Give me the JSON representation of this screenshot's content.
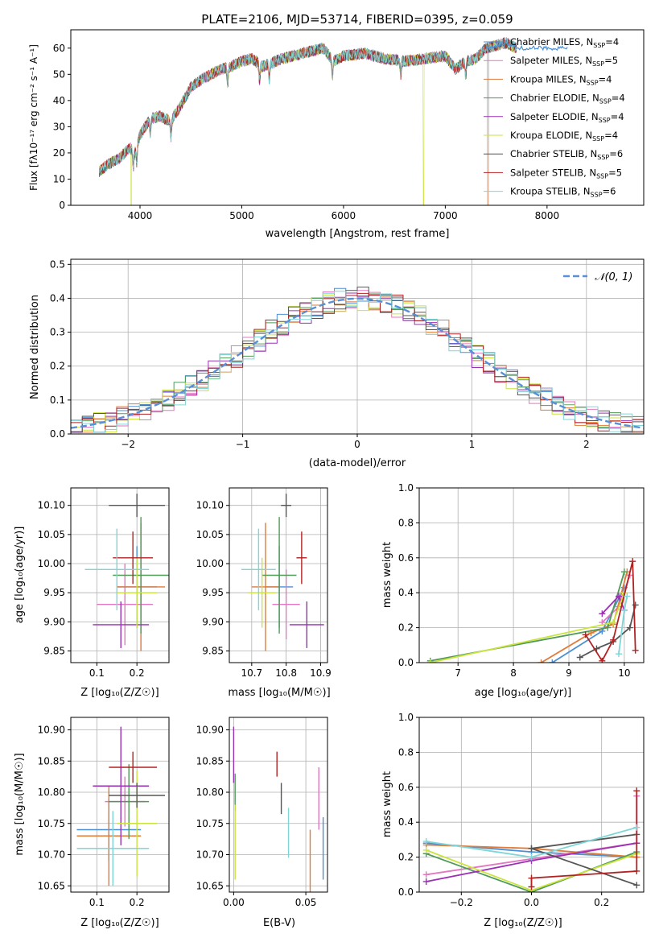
{
  "title": "PLATE=2106, MJD=53714, FIBERID=0395, z=0.059",
  "colors": {
    "cm": "#4a90d9",
    "sm": "#e377c2",
    "km": "#e07b39",
    "ce": "#4e9a56",
    "se": "#9b30b5",
    "ke": "#cbe33d",
    "cs": "#555555",
    "ss": "#b22222",
    "ks": "#7fd6d6",
    "normal": "#5a8fd6"
  },
  "panels": {
    "spectrum": {
      "xlabel": "wavelength [Angstrom, rest frame]",
      "ylabel": "Flux [fλ10⁻¹⁷ erg cm⁻² s⁻¹ A⁻¹]",
      "xticks": [
        "4000",
        "5000",
        "6000",
        "7000",
        "8000"
      ],
      "yticks": [
        "0",
        "10",
        "20",
        "30",
        "40",
        "50",
        "60"
      ],
      "legend": [
        {
          "key": "cm",
          "pre": "Chabrier MILES, N",
          "sub": "SSP",
          "post": "=4"
        },
        {
          "key": "sm",
          "pre": "Salpeter MILES, N",
          "sub": "SSP",
          "post": "=5"
        },
        {
          "key": "km",
          "pre": "Kroupa MILES, N",
          "sub": "SSP",
          "post": "=4"
        },
        {
          "key": "ce",
          "pre": "Chabrier ELODIE, N",
          "sub": "SSP",
          "post": "=4"
        },
        {
          "key": "se",
          "pre": "Salpeter ELODIE, N",
          "sub": "SSP",
          "post": "=4"
        },
        {
          "key": "ke",
          "pre": "Kroupa ELODIE, N",
          "sub": "SSP",
          "post": "=4"
        },
        {
          "key": "cs",
          "pre": "Chabrier STELIB, N",
          "sub": "SSP",
          "post": "=6"
        },
        {
          "key": "ss",
          "pre": "Salpeter STELIB, N",
          "sub": "SSP",
          "post": "=5"
        },
        {
          "key": "ks",
          "pre": "Kroupa STELIB, N",
          "sub": "SSP",
          "post": "=6"
        }
      ]
    },
    "residuals": {
      "xlabel": "(data-model)/error",
      "ylabel": "Normed distribution",
      "legend": "𝒩(0, 1)",
      "xticks": [
        "−2",
        "−1",
        "0",
        "1",
        "2"
      ],
      "yticks": [
        "0.0",
        "0.1",
        "0.2",
        "0.3",
        "0.4",
        "0.5"
      ]
    },
    "age_z": {
      "xlabel": "Z [log₁₀(Z/Z☉)]",
      "ylabel": "age  [log₁₀(age/yr)]",
      "xticks": [
        "0.1",
        "0.2"
      ],
      "yticks": [
        "10.10",
        "10.05",
        "10.00",
        "9.95",
        "9.90",
        "9.85"
      ]
    },
    "age_mass": {
      "xlabel": "mass [log₁₀(M/M☉)]",
      "xticks": [
        "10.7",
        "10.8",
        "10.9"
      ],
      "yticks": [
        "10.10",
        "10.05",
        "10.00",
        "9.95",
        "9.90",
        "9.85"
      ]
    },
    "weight_age": {
      "xlabel": "age  [log₁₀(age/yr)]",
      "ylabel": "mass weight",
      "xticks": [
        "7",
        "8",
        "9",
        "10"
      ],
      "yticks": [
        "0.0",
        "0.2",
        "0.4",
        "0.6",
        "0.8",
        "1.0"
      ]
    },
    "mass_z": {
      "xlabel": "Z [log₁₀(Z/Z☉)]",
      "ylabel": "mass [log₁₀(M/M☉)]",
      "xticks": [
        "0.1",
        "0.2"
      ],
      "yticks": [
        "10.90",
        "10.85",
        "10.80",
        "10.75",
        "10.70",
        "10.65"
      ]
    },
    "mass_ebv": {
      "xlabel": "E(B-V)",
      "xticks": [
        "0.00",
        "0.05"
      ],
      "yticks": [
        "10.90",
        "10.85",
        "10.80",
        "10.75",
        "10.70",
        "10.65"
      ]
    },
    "weight_z": {
      "xlabel": "Z [log₁₀(Z/Z☉)]",
      "ylabel": "mass weight",
      "xticks": [
        "−0.2",
        "0.0",
        "0.2"
      ],
      "yticks": [
        "0.0",
        "0.2",
        "0.4",
        "0.6",
        "0.8",
        "1.0"
      ]
    }
  },
  "chart_data": [
    {
      "type": "line",
      "id": "spectrum",
      "title": "PLATE=2106, MJD=53714, FIBERID=0395, z=0.059",
      "xlabel": "wavelength [Angstrom, rest frame]",
      "ylabel": "Flux [fλ10⁻¹⁷ erg cm⁻² s⁻¹ A⁻¹]",
      "xlim": [
        3320,
        8950
      ],
      "ylim": [
        0,
        67
      ],
      "continuum": {
        "x": [
          3600,
          3700,
          3800,
          3900,
          3950,
          4000,
          4100,
          4200,
          4300,
          4400,
          4500,
          4600,
          4700,
          4800,
          4900,
          5000,
          5100,
          5200,
          5400,
          5600,
          5800,
          5900,
          6000,
          6200,
          6400,
          6600,
          6800,
          7000,
          7100,
          7200,
          7300,
          7400,
          7500,
          7600,
          7700
        ],
        "y": [
          13,
          16,
          18,
          22,
          20,
          27,
          33,
          34,
          32,
          38,
          45,
          48,
          50,
          52,
          53,
          55,
          56,
          53,
          56,
          58,
          60,
          55,
          57,
          58,
          56,
          55,
          56,
          57,
          52,
          55,
          56,
          60,
          61,
          62,
          60
        ]
      },
      "dips": [
        {
          "series": "ke",
          "x": 3915
        },
        {
          "series": "ke",
          "x": 6785
        },
        {
          "series": "km",
          "x": 7420
        }
      ],
      "series": [
        "Chabrier MILES, N_SSP=4",
        "Salpeter MILES, N_SSP=5",
        "Kroupa MILES, N_SSP=4",
        "Chabrier ELODIE, N_SSP=4",
        "Salpeter ELODIE, N_SSP=4",
        "Kroupa ELODIE, N_SSP=4",
        "Chabrier STELIB, N_SSP=6",
        "Salpeter STELIB, N_SSP=5",
        "Kroupa STELIB, N_SSP=6"
      ]
    },
    {
      "type": "bar",
      "id": "residuals",
      "xlabel": "(data-model)/error",
      "ylabel": "Normed distribution",
      "xlim": [
        -2.5,
        2.5
      ],
      "ylim": [
        0,
        0.515
      ],
      "bins": {
        "start": -2.5,
        "width": 0.1,
        "count": 50
      },
      "normal": {
        "mu": 0,
        "sigma": 1,
        "name": "𝒩(0, 1)"
      },
      "series_keys": [
        "cm",
        "sm",
        "km",
        "ce",
        "se",
        "ke",
        "cs",
        "ss",
        "ks"
      ]
    },
    {
      "type": "scatter",
      "id": "age_z",
      "xlim": [
        0.035,
        0.28
      ],
      "ylim": [
        9.83,
        10.13
      ],
      "points": [
        {
          "key": "cm",
          "x": 0.2,
          "y": 9.96,
          "xerr": 0.05,
          "yerr": 0.07
        },
        {
          "key": "sm",
          "x": 0.17,
          "y": 9.93,
          "xerr": 0.07,
          "yerr": 0.07
        },
        {
          "key": "km",
          "x": 0.21,
          "y": 9.96,
          "xerr": 0.06,
          "yerr": 0.11
        },
        {
          "key": "ce",
          "x": 0.21,
          "y": 9.98,
          "xerr": 0.07,
          "yerr": 0.1
        },
        {
          "key": "se",
          "x": 0.16,
          "y": 9.895,
          "xerr": 0.07,
          "yerr": 0.04
        },
        {
          "key": "ke",
          "x": 0.2,
          "y": 9.95,
          "xerr": 0.05,
          "yerr": 0.06
        },
        {
          "key": "cs",
          "x": 0.2,
          "y": 10.1,
          "xerr": 0.07,
          "yerr": 0.02
        },
        {
          "key": "ss",
          "x": 0.19,
          "y": 10.01,
          "xerr": 0.05,
          "yerr": 0.045
        },
        {
          "key": "ks",
          "x": 0.15,
          "y": 9.99,
          "xerr": 0.08,
          "yerr": 0.07
        }
      ]
    },
    {
      "type": "scatter",
      "id": "age_mass",
      "xlim": [
        10.635,
        10.92
      ],
      "ylim": [
        9.83,
        10.13
      ],
      "points": [
        {
          "key": "cm",
          "x": 10.78,
          "y": 9.96,
          "xerr": 0.04,
          "yerr": 0.07
        },
        {
          "key": "sm",
          "x": 10.8,
          "y": 9.93,
          "xerr": 0.04,
          "yerr": 0.06
        },
        {
          "key": "km",
          "x": 10.74,
          "y": 9.96,
          "xerr": 0.04,
          "yerr": 0.11
        },
        {
          "key": "ce",
          "x": 10.78,
          "y": 9.98,
          "xerr": 0.05,
          "yerr": 0.1
        },
        {
          "key": "se",
          "x": 10.86,
          "y": 9.895,
          "xerr": 0.05,
          "yerr": 0.04
        },
        {
          "key": "ke",
          "x": 10.73,
          "y": 9.95,
          "xerr": 0.04,
          "yerr": 0.06
        },
        {
          "key": "cs",
          "x": 10.8,
          "y": 10.1,
          "xerr": 0.015,
          "yerr": 0.02
        },
        {
          "key": "ss",
          "x": 10.845,
          "y": 10.01,
          "xerr": 0.015,
          "yerr": 0.045
        },
        {
          "key": "ks",
          "x": 10.72,
          "y": 9.99,
          "xerr": 0.05,
          "yerr": 0.07
        }
      ]
    },
    {
      "type": "line",
      "id": "weight_age",
      "xlim": [
        6.3,
        10.35
      ],
      "ylim": [
        0,
        1
      ],
      "series": [
        {
          "key": "cm",
          "x": [
            8.7,
            9.6,
            10.0
          ],
          "y": [
            0.0,
            0.18,
            0.43
          ]
        },
        {
          "key": "sm",
          "x": [
            9.6,
            9.9,
            10.1
          ],
          "y": [
            0.23,
            0.32,
            0.5
          ]
        },
        {
          "key": "km",
          "x": [
            8.5,
            9.4,
            9.8,
            10.05
          ],
          "y": [
            0.0,
            0.17,
            0.22,
            0.52
          ]
        },
        {
          "key": "ce",
          "x": [
            6.5,
            9.7,
            10.0
          ],
          "y": [
            0.01,
            0.2,
            0.52
          ]
        },
        {
          "key": "se",
          "x": [
            9.6,
            9.9,
            10.0
          ],
          "y": [
            0.28,
            0.38,
            0.3
          ]
        },
        {
          "key": "ke",
          "x": [
            6.5,
            9.8,
            10.0
          ],
          "y": [
            0.0,
            0.23,
            0.4
          ]
        },
        {
          "key": "cs",
          "x": [
            9.2,
            9.5,
            9.8,
            10.1,
            10.2
          ],
          "y": [
            0.03,
            0.08,
            0.12,
            0.2,
            0.33
          ]
        },
        {
          "key": "ss",
          "x": [
            9.3,
            9.6,
            9.8,
            10.15,
            10.2
          ],
          "y": [
            0.16,
            0.01,
            0.13,
            0.58,
            0.07
          ]
        },
        {
          "key": "ks",
          "x": [
            9.9,
            10.0,
            10.05
          ],
          "y": [
            0.05,
            0.3,
            0.38
          ]
        }
      ]
    },
    {
      "type": "scatter",
      "id": "mass_z",
      "xlim": [
        0.035,
        0.28
      ],
      "ylim": [
        10.64,
        10.92
      ],
      "points": [
        {
          "key": "cm",
          "x": 0.13,
          "y": 10.74,
          "xerr": 0.08,
          "yerr": 0.05
        },
        {
          "key": "sm",
          "x": 0.17,
          "y": 10.785,
          "xerr": 0.05,
          "yerr": 0.04
        },
        {
          "key": "km",
          "x": 0.13,
          "y": 10.73,
          "xerr": 0.08,
          "yerr": 0.08
        },
        {
          "key": "ce",
          "x": 0.18,
          "y": 10.785,
          "xerr": 0.05,
          "yerr": 0.06
        },
        {
          "key": "se",
          "x": 0.16,
          "y": 10.81,
          "xerr": 0.07,
          "yerr": 0.095
        },
        {
          "key": "ke",
          "x": 0.2,
          "y": 10.75,
          "xerr": 0.05,
          "yerr": 0.085
        },
        {
          "key": "cs",
          "x": 0.2,
          "y": 10.795,
          "xerr": 0.07,
          "yerr": 0.02
        },
        {
          "key": "ss",
          "x": 0.19,
          "y": 10.84,
          "xerr": 0.06,
          "yerr": 0.025
        },
        {
          "key": "ks",
          "x": 0.14,
          "y": 10.71,
          "xerr": 0.09,
          "yerr": 0.06
        }
      ]
    },
    {
      "type": "scatter",
      "id": "mass_ebv",
      "xlim": [
        -0.003,
        0.065
      ],
      "ylim": [
        10.64,
        10.92
      ],
      "points": [
        {
          "key": "cm",
          "x": 0.062,
          "y": 10.71,
          "xerr": 0,
          "yerr": 0.05
        },
        {
          "key": "sm",
          "x": 0.059,
          "y": 10.79,
          "xerr": 0,
          "yerr": 0.05
        },
        {
          "key": "km",
          "x": 0.053,
          "y": 10.69,
          "xerr": 0,
          "yerr": 0.05
        },
        {
          "key": "ce",
          "x": 0.001,
          "y": 10.8,
          "xerr": 0,
          "yerr": 0.03
        },
        {
          "key": "se",
          "x": 0.0,
          "y": 10.86,
          "xerr": 0,
          "yerr": 0.045
        },
        {
          "key": "ke",
          "x": 0.001,
          "y": 10.72,
          "xerr": 0,
          "yerr": 0.06
        },
        {
          "key": "cs",
          "x": 0.033,
          "y": 10.79,
          "xerr": 0,
          "yerr": 0.025
        },
        {
          "key": "ss",
          "x": 0.03,
          "y": 10.845,
          "xerr": 0,
          "yerr": 0.02
        },
        {
          "key": "ks",
          "x": 0.038,
          "y": 10.735,
          "xerr": 0,
          "yerr": 0.04
        }
      ]
    },
    {
      "type": "line",
      "id": "weight_z",
      "xlim": [
        -0.32,
        0.32
      ],
      "ylim": [
        0,
        1
      ],
      "series": [
        {
          "key": "cm",
          "x": [
            -0.3,
            0.0,
            0.3
          ],
          "y": [
            0.28,
            0.23,
            0.2
          ]
        },
        {
          "key": "sm",
          "x": [
            -0.3,
            0.3,
            0.3
          ],
          "y": [
            0.1,
            0.28,
            0.55
          ]
        },
        {
          "key": "km",
          "x": [
            -0.3,
            0.0,
            0.3
          ],
          "y": [
            0.27,
            0.25,
            0.2
          ]
        },
        {
          "key": "ce",
          "x": [
            -0.3,
            0.0,
            0.3
          ],
          "y": [
            0.22,
            0.0,
            0.23
          ]
        },
        {
          "key": "se",
          "x": [
            -0.3,
            0.0,
            0.3
          ],
          "y": [
            0.06,
            0.18,
            0.28
          ]
        },
        {
          "key": "ke",
          "x": [
            -0.3,
            0.0,
            0.3
          ],
          "y": [
            0.24,
            0.01,
            0.22
          ]
        },
        {
          "key": "cs",
          "x": [
            0.3,
            0.0,
            0.3
          ],
          "y": [
            0.04,
            0.25,
            0.33
          ]
        },
        {
          "key": "ss",
          "x": [
            0.0,
            0.0,
            0.3,
            0.3
          ],
          "y": [
            0.03,
            0.08,
            0.12,
            0.58
          ]
        },
        {
          "key": "ks",
          "x": [
            -0.3,
            0.0,
            0.3
          ],
          "y": [
            0.29,
            0.2,
            0.37
          ]
        }
      ]
    }
  ]
}
